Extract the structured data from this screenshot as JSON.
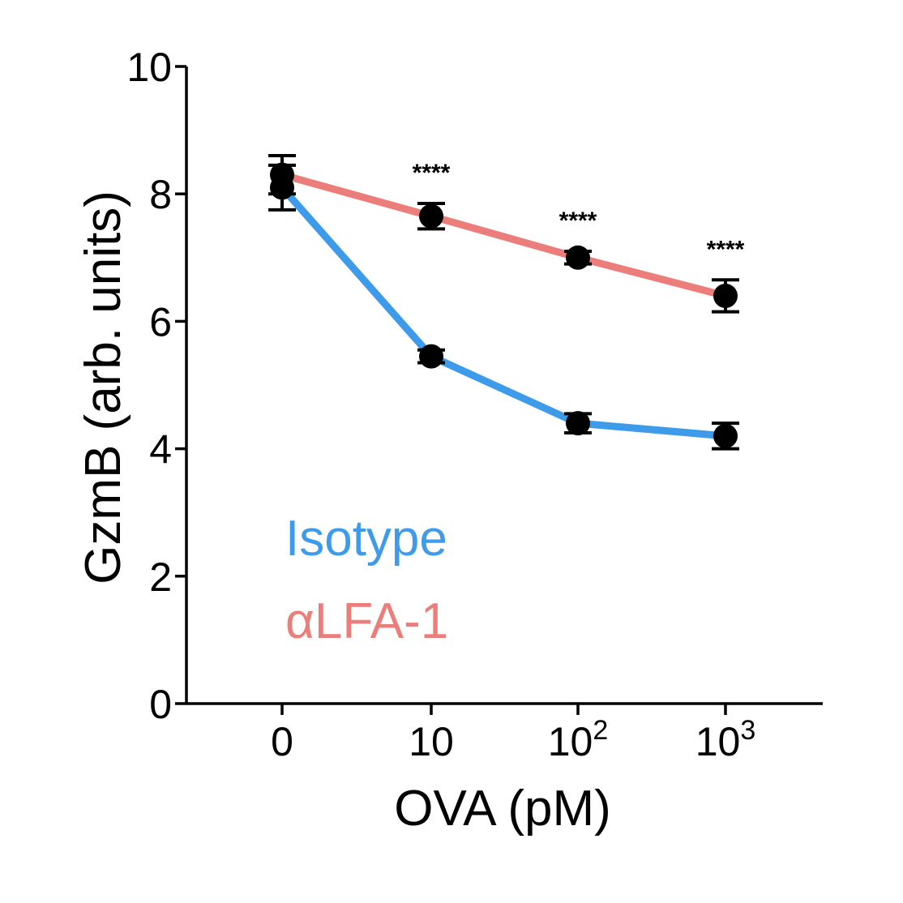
{
  "chart_data": {
    "type": "line",
    "xlabel": "OVA (pM)",
    "ylabel": "GzmB (arb. units)",
    "ylim": [
      0,
      10
    ],
    "yticks": [
      "0",
      "2",
      "4",
      "6",
      "8",
      "10"
    ],
    "categories": [
      {
        "base": "0",
        "exp": ""
      },
      {
        "base": "10",
        "exp": ""
      },
      {
        "base": "10",
        "exp": "2"
      },
      {
        "base": "10",
        "exp": "3"
      }
    ],
    "series": [
      {
        "name": "Isotype",
        "color": "#3d9be9",
        "values": [
          8.1,
          5.45,
          4.4,
          4.2
        ],
        "errors": [
          0.35,
          0.1,
          0.15,
          0.2
        ]
      },
      {
        "name": "αLFA-1",
        "color": "#eb7e7b",
        "values": [
          8.3,
          7.65,
          7.0,
          6.4
        ],
        "errors": [
          0.3,
          0.2,
          0.1,
          0.25
        ]
      }
    ],
    "annotations": [
      "",
      "****",
      "****",
      "****"
    ],
    "grid": false,
    "legend_position": "bottom-left"
  }
}
